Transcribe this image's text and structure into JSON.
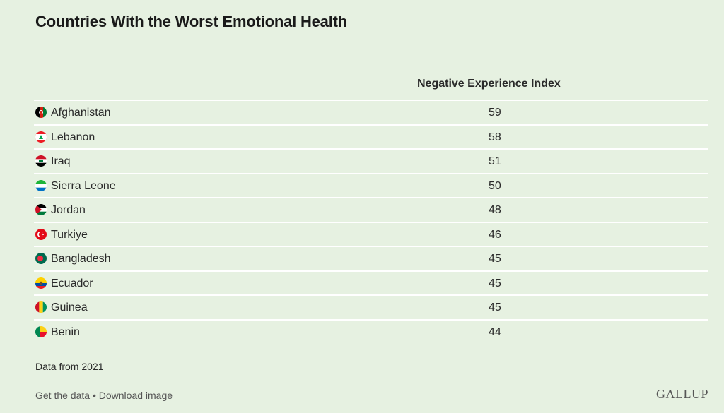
{
  "chart_data": {
    "type": "table",
    "title": "Countries With the Worst Emotional Health",
    "column_header": "Negative Experience Index",
    "rows": [
      {
        "country": "Afghanistan",
        "value": 59,
        "flag": "afghanistan-flag-icon"
      },
      {
        "country": "Lebanon",
        "value": 58,
        "flag": "lebanon-flag-icon"
      },
      {
        "country": "Iraq",
        "value": 51,
        "flag": "iraq-flag-icon"
      },
      {
        "country": "Sierra Leone",
        "value": 50,
        "flag": "sierra-leone-flag-icon"
      },
      {
        "country": "Jordan",
        "value": 48,
        "flag": "jordan-flag-icon"
      },
      {
        "country": "Turkiye",
        "value": 46,
        "flag": "turkiye-flag-icon"
      },
      {
        "country": "Bangladesh",
        "value": 45,
        "flag": "bangladesh-flag-icon"
      },
      {
        "country": "Ecuador",
        "value": 45,
        "flag": "ecuador-flag-icon"
      },
      {
        "country": "Guinea",
        "value": 45,
        "flag": "guinea-flag-icon"
      },
      {
        "country": "Benin",
        "value": 44,
        "flag": "benin-flag-icon"
      }
    ]
  },
  "footer": {
    "note": "Data from 2021",
    "get_data_label": "Get the data",
    "separator": " • ",
    "download_label": "Download image",
    "logo": "GALLUP"
  },
  "colors": {
    "background": "#e6f1e1",
    "row_divider": "#ffffff"
  }
}
